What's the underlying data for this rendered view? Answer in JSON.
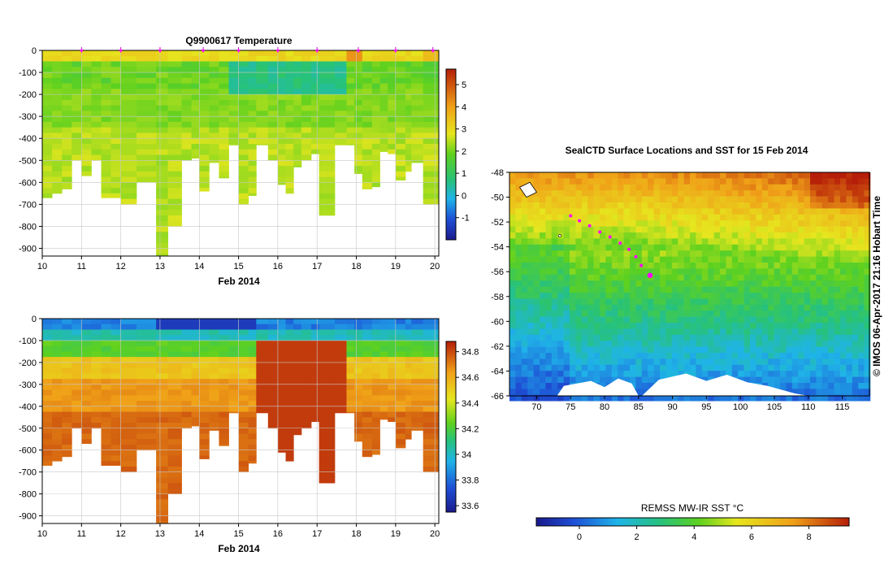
{
  "chart_data": [
    {
      "id": "temp",
      "type": "heatmap",
      "title": "Q9900617  Temperature",
      "xlabel": "Feb 2014",
      "x_ticks": [
        "10",
        "11",
        "12",
        "13",
        "14",
        "15",
        "16",
        "17",
        "18",
        "19",
        "20"
      ],
      "xlim": [
        10,
        20.1
      ],
      "y_ticks": [
        "0",
        "-100",
        "-200",
        "-300",
        "-400",
        "-500",
        "-600",
        "-700",
        "-800",
        "-900"
      ],
      "ylim": [
        -935,
        0
      ],
      "colorbar_ticks": [
        "-1",
        "0",
        "1",
        "2",
        "3",
        "4",
        "5"
      ],
      "colorbar_range": [
        -2,
        5.7
      ],
      "profile_markers": [
        11,
        12,
        13,
        14.1,
        15,
        16,
        17,
        18.05,
        19,
        19.95
      ],
      "profiles": [
        {
          "start": 10.0,
          "end": 10.25,
          "depth": 670
        },
        {
          "start": 10.25,
          "end": 10.5,
          "depth": 650
        },
        {
          "start": 10.5,
          "end": 10.75,
          "depth": 630
        },
        {
          "start": 10.75,
          "end": 11.0,
          "depth": 500
        },
        {
          "start": 11.0,
          "end": 11.25,
          "depth": 570
        },
        {
          "start": 11.25,
          "end": 11.5,
          "depth": 500
        },
        {
          "start": 11.5,
          "end": 11.75,
          "depth": 670
        },
        {
          "start": 11.75,
          "end": 12.0,
          "depth": 670
        },
        {
          "start": 12.0,
          "end": 12.4,
          "depth": 700
        },
        {
          "start": 12.4,
          "end": 12.9,
          "depth": 600
        },
        {
          "start": 12.9,
          "end": 13.2,
          "depth": 935
        },
        {
          "start": 13.2,
          "end": 13.55,
          "depth": 800
        },
        {
          "start": 13.55,
          "end": 13.8,
          "depth": 500
        },
        {
          "start": 13.8,
          "end": 14.0,
          "depth": 490
        },
        {
          "start": 14.0,
          "end": 14.25,
          "depth": 640
        },
        {
          "start": 14.25,
          "end": 14.5,
          "depth": 510
        },
        {
          "start": 14.5,
          "end": 14.75,
          "depth": 580
        },
        {
          "start": 14.75,
          "end": 15.0,
          "depth": 430
        },
        {
          "start": 15.0,
          "end": 15.25,
          "depth": 700
        },
        {
          "start": 15.25,
          "end": 15.45,
          "depth": 660
        },
        {
          "start": 15.45,
          "end": 15.75,
          "depth": 430
        },
        {
          "start": 15.75,
          "end": 16.0,
          "depth": 500
        },
        {
          "start": 16.0,
          "end": 16.2,
          "depth": 610
        },
        {
          "start": 16.2,
          "end": 16.4,
          "depth": 650
        },
        {
          "start": 16.4,
          "end": 16.6,
          "depth": 530
        },
        {
          "start": 16.6,
          "end": 16.85,
          "depth": 500
        },
        {
          "start": 16.85,
          "end": 17.05,
          "depth": 470
        },
        {
          "start": 17.05,
          "end": 17.45,
          "depth": 750
        },
        {
          "start": 17.45,
          "end": 17.75,
          "depth": 430
        },
        {
          "start": 17.75,
          "end": 17.95,
          "depth": 430
        },
        {
          "start": 17.95,
          "end": 18.15,
          "depth": 560
        },
        {
          "start": 18.15,
          "end": 18.4,
          "depth": 630
        },
        {
          "start": 18.4,
          "end": 18.6,
          "depth": 620
        },
        {
          "start": 18.6,
          "end": 18.8,
          "depth": 460
        },
        {
          "start": 18.8,
          "end": 19.0,
          "depth": 470
        },
        {
          "start": 19.0,
          "end": 19.25,
          "depth": 590
        },
        {
          "start": 19.25,
          "end": 19.4,
          "depth": 550
        },
        {
          "start": 19.4,
          "end": 19.7,
          "depth": 510
        },
        {
          "start": 19.7,
          "end": 20.1,
          "depth": 700
        }
      ]
    },
    {
      "id": "salinity",
      "type": "heatmap",
      "title": "",
      "xlabel": "Feb 2014",
      "x_ticks": [
        "10",
        "11",
        "12",
        "13",
        "14",
        "15",
        "16",
        "17",
        "18",
        "19",
        "20"
      ],
      "xlim": [
        10,
        20.1
      ],
      "y_ticks": [
        "0",
        "-100",
        "-200",
        "-300",
        "-400",
        "-500",
        "-600",
        "-700",
        "-800",
        "-900"
      ],
      "ylim": [
        -935,
        0
      ],
      "colorbar_ticks": [
        "33.6",
        "33.8",
        "34",
        "34.2",
        "34.4",
        "34.6",
        "34.8"
      ],
      "colorbar_range": [
        33.55,
        34.88
      ]
    },
    {
      "id": "sst_map",
      "type": "heatmap",
      "title": "SealCTD Surface Locations and SST for 15 Feb 2014",
      "side_label": "© IMOS 06-Apr-2017 21:16 Hobart Time",
      "x_ticks": [
        "70",
        "75",
        "80",
        "85",
        "90",
        "95",
        "100",
        "105",
        "110",
        "115"
      ],
      "xlim": [
        66,
        119
      ],
      "y_ticks": [
        "-48",
        "-50",
        "-52",
        "-54",
        "-56",
        "-58",
        "-60",
        "-62",
        "-64",
        "-66"
      ],
      "ylim": [
        -66,
        -48
      ],
      "colorbar_label": "REMSS MW-IR SST °C",
      "colorbar_ticks": [
        "0",
        "2",
        "4",
        "6",
        "8"
      ],
      "colorbar_range": [
        -1.5,
        9.4
      ],
      "track": [
        [
          75.0,
          -51.5
        ],
        [
          76.3,
          -51.9
        ],
        [
          77.8,
          -52.3
        ],
        [
          79.3,
          -52.8
        ],
        [
          80.8,
          -53.2
        ],
        [
          82.3,
          -53.7
        ],
        [
          83.6,
          -54.2
        ],
        [
          84.6,
          -54.8
        ],
        [
          85.4,
          -55.5
        ],
        [
          86.7,
          -56.3
        ]
      ],
      "track_color": "#ff00ff"
    }
  ]
}
